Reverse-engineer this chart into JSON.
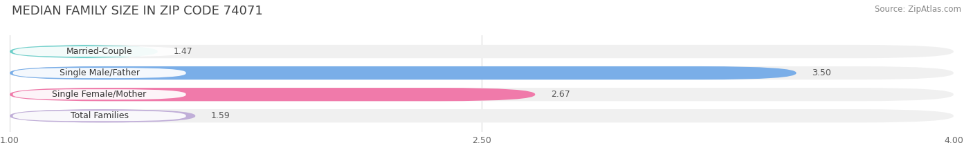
{
  "title": "MEDIAN FAMILY SIZE IN ZIP CODE 74071",
  "source": "Source: ZipAtlas.com",
  "categories": [
    "Married-Couple",
    "Single Male/Father",
    "Single Female/Mother",
    "Total Families"
  ],
  "values": [
    1.47,
    3.5,
    2.67,
    1.59
  ],
  "bar_colors": [
    "#6dcfca",
    "#7aaee8",
    "#f07aaa",
    "#c0aed8"
  ],
  "xmin": 1.0,
  "xmax": 4.0,
  "xticks": [
    1.0,
    2.5,
    4.0
  ],
  "bar_height": 0.62,
  "background_color": "#ffffff",
  "bar_background_color": "#f0f0f0",
  "title_fontsize": 13,
  "label_fontsize": 9,
  "value_fontsize": 9,
  "source_fontsize": 8.5
}
